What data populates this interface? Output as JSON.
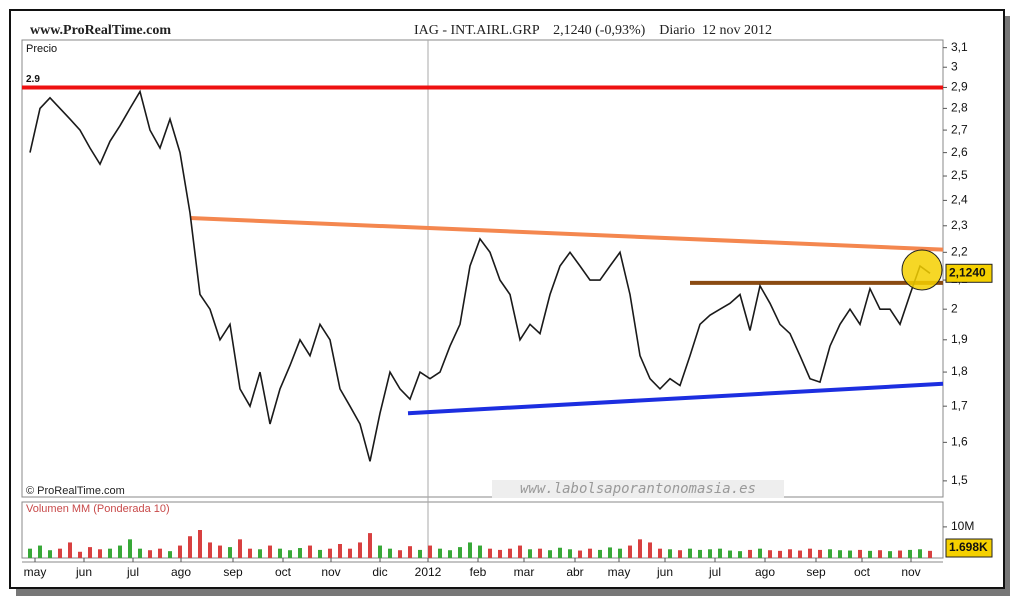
{
  "chart_data": {
    "type": "line",
    "site": "www.ProRealTime.com",
    "title": "IAG - INT.AIRL.GRP    2,1240 (-0,93%)    Diario  12 nov 2012",
    "panel_label": "Precio",
    "copyright": "© ProRealTime.com",
    "watermark": "www.labolsaporantonomasia.es",
    "log_scale": true,
    "ylim": [
      1.46,
      3.14
    ],
    "yticks": [
      {
        "value": 3.1,
        "label": "3,1"
      },
      3,
      {
        "value": 2.9,
        "label": "2,9"
      },
      {
        "value": 2.8,
        "label": "2,8"
      },
      {
        "value": 2.7,
        "label": "2,7"
      },
      {
        "value": 2.6,
        "label": "2,6"
      },
      {
        "value": 2.5,
        "label": "2,5"
      },
      {
        "value": 2.4,
        "label": "2,4"
      },
      {
        "value": 2.3,
        "label": "2,3"
      },
      {
        "value": 2.2,
        "label": "2,2"
      },
      {
        "value": 2.1,
        "label": "2,1"
      },
      2,
      {
        "value": 1.9,
        "label": "1,9"
      },
      {
        "value": 1.8,
        "label": "1,8"
      },
      {
        "value": 1.7,
        "label": "1,7"
      },
      {
        "value": 1.6,
        "label": "1,6"
      },
      {
        "value": 1.5,
        "label": "1,5"
      }
    ],
    "xlim": [
      -0.8,
      91.3
    ],
    "xticks": [
      {
        "value": 0.5,
        "label": "may"
      },
      {
        "value": 5.4,
        "label": "jun"
      },
      {
        "value": 10.3,
        "label": "jul"
      },
      {
        "value": 15.1,
        "label": "ago"
      },
      {
        "value": 20.3,
        "label": "sep"
      },
      {
        "value": 25.3,
        "label": "oct"
      },
      {
        "value": 30.1,
        "label": "nov"
      },
      {
        "value": 35,
        "label": "dic"
      },
      {
        "value": 39.8,
        "label": "2012"
      },
      {
        "value": 44.8,
        "label": "feb"
      },
      {
        "value": 49.4,
        "label": "mar"
      },
      {
        "value": 54.5,
        "label": "abr"
      },
      {
        "value": 58.9,
        "label": "may"
      },
      {
        "value": 63.5,
        "label": "jun"
      },
      {
        "value": 68.5,
        "label": "jul"
      },
      {
        "value": 73.5,
        "label": "ago"
      },
      {
        "value": 78.6,
        "label": "sep"
      },
      {
        "value": 83.2,
        "label": "oct"
      },
      {
        "value": 88.1,
        "label": "nov"
      }
    ],
    "series": [
      {
        "color": "#1a1a1a",
        "values": [
          2.6,
          2.8,
          2.85,
          2.8,
          2.75,
          2.7,
          2.62,
          2.55,
          2.65,
          2.72,
          2.8,
          2.88,
          2.7,
          2.62,
          2.75,
          2.6,
          2.35,
          2.05,
          2.0,
          1.9,
          1.95,
          1.75,
          1.7,
          1.8,
          1.65,
          1.75,
          1.82,
          1.9,
          1.85,
          1.95,
          1.9,
          1.75,
          1.7,
          1.65,
          1.55,
          1.68,
          1.8,
          1.75,
          1.72,
          1.8,
          1.78,
          1.8,
          1.88,
          1.95,
          2.15,
          2.25,
          2.2,
          2.1,
          2.05,
          1.9,
          1.95,
          1.92,
          2.05,
          2.15,
          2.2,
          2.15,
          2.1,
          2.1,
          2.15,
          2.2,
          2.05,
          1.85,
          1.78,
          1.75,
          1.78,
          1.76,
          1.85,
          1.95,
          1.98,
          2.0,
          2.02,
          2.05,
          1.93,
          2.08,
          2.02,
          1.95,
          1.92,
          1.85,
          1.78,
          1.77,
          1.88,
          1.95,
          2.0,
          1.95,
          2.07,
          2.0,
          2.0,
          1.95,
          2.05,
          2.15,
          2.124
        ]
      }
    ],
    "current_price": {
      "value": 2.124,
      "label": "2,1240"
    },
    "lines": [
      {
        "color": "#ee1111",
        "label": "2.9",
        "start": [
          -0.8,
          2.9
        ],
        "end": [
          91.3,
          2.9
        ]
      },
      {
        "color": "#f4874f",
        "start": [
          16,
          2.33
        ],
        "end": [
          91.3,
          2.21
        ]
      },
      {
        "color": "#1c2ee0",
        "start": [
          37.8,
          1.68
        ],
        "end": [
          91.3,
          1.765
        ]
      },
      {
        "color": "#8a4b12",
        "start": [
          66,
          2.09
        ],
        "end": [
          91.3,
          2.09
        ]
      }
    ],
    "volume": {
      "title": "Volumen MM (Ponderada 10)",
      "ylim": [
        0,
        18
      ],
      "yticks": [
        {
          "value": 10,
          "label": "10M"
        }
      ],
      "values": [
        3,
        4,
        2.5,
        3,
        5,
        2,
        3.5,
        2.8,
        3,
        4,
        6,
        3,
        2.5,
        3,
        2.2,
        4,
        7,
        9,
        5,
        4,
        3.5,
        6,
        3,
        2.8,
        4,
        3,
        2.5,
        3.2,
        4,
        2.6,
        3,
        4.5,
        3,
        5,
        8,
        4,
        3,
        2.5,
        3.8,
        2.6,
        4,
        3,
        2.5,
        3.5,
        5,
        4,
        3,
        2.6,
        3,
        4,
        2.8,
        3,
        2.5,
        3.3,
        2.8,
        2.4,
        3,
        2.6,
        3.4,
        3,
        4,
        6,
        5,
        3,
        2.8,
        2.5,
        3,
        2.6,
        2.8,
        3,
        2.4,
        2.2,
        2.6,
        3,
        2.5,
        2.3,
        2.8,
        2.4,
        3,
        2.6,
        2.8,
        2.5,
        2.4,
        2.6,
        2.3,
        2.5,
        2.2,
        2.4,
        2.6,
        2.8,
        2.3
      ],
      "current": {
        "value": 0.001698,
        "label": "1.698K"
      }
    }
  }
}
